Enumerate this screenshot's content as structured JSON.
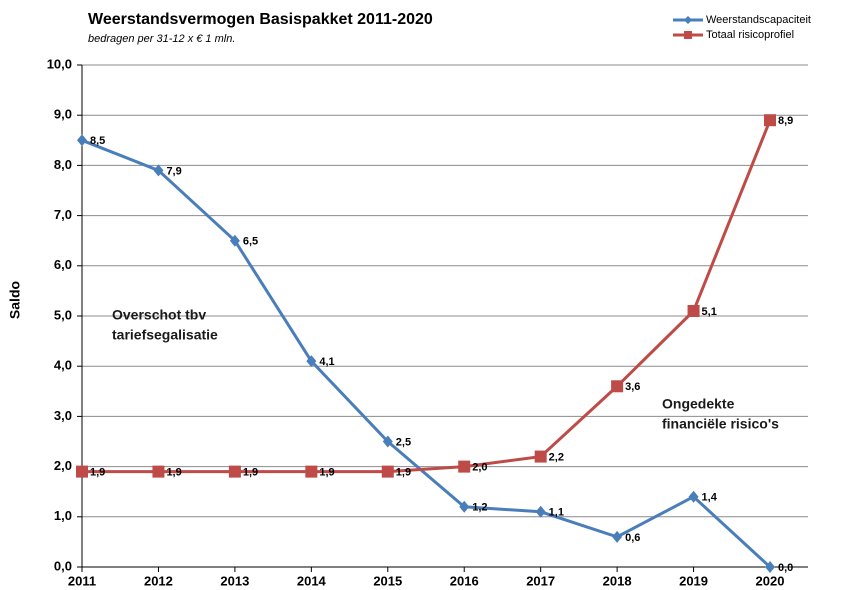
{
  "chart_data": {
    "type": "line",
    "title": "Weerstandsvermogen Basispakket 2011-2020",
    "subtitle": "bedragen per 31-12 x € 1 mln.",
    "y_label": "Saldo",
    "categories": [
      "2011",
      "2012",
      "2013",
      "2014",
      "2015",
      "2016",
      "2017",
      "2018",
      "2019",
      "2020"
    ],
    "series": [
      {
        "name": "Weerstandscapaciteit",
        "color": "#4a7ebb",
        "marker": "diamond",
        "values": [
          8.5,
          7.9,
          6.5,
          4.1,
          2.5,
          1.2,
          1.1,
          0.6,
          1.4,
          0.0
        ],
        "value_labels": [
          "8,5",
          "7,9",
          "6,5",
          "4,1",
          "2,5",
          "1,2",
          "1,1",
          "0,6",
          "1,4",
          "0,0"
        ]
      },
      {
        "name": "Totaal risicoprofiel",
        "color": "#be4b48",
        "marker": "square",
        "values": [
          1.9,
          1.9,
          1.9,
          1.9,
          1.9,
          2.0,
          2.2,
          3.6,
          5.1,
          8.9
        ],
        "value_labels": [
          "1,9",
          "1,9",
          "1,9",
          "1,9",
          "1,9",
          "2,0",
          "2,2",
          "3,6",
          "5,1",
          "8,9"
        ]
      }
    ],
    "ylim": [
      0,
      10
    ],
    "yticks": [
      {
        "value": 0,
        "label": "0,0"
      },
      {
        "value": 1,
        "label": "1,0"
      },
      {
        "value": 2,
        "label": "2,0"
      },
      {
        "value": 3,
        "label": "3,0"
      },
      {
        "value": 4,
        "label": "4,0"
      },
      {
        "value": 5,
        "label": "5,0"
      },
      {
        "value": 6,
        "label": "6,0"
      },
      {
        "value": 7,
        "label": "7,0"
      },
      {
        "value": 8,
        "label": "8,0"
      },
      {
        "value": 9,
        "label": "9,0"
      },
      {
        "value": 10,
        "label": "10,0"
      }
    ],
    "grid": true,
    "legend": "top-right",
    "annotations": [
      {
        "lines": [
          "Overschot tbv",
          "tariefsegalisatie"
        ]
      },
      {
        "lines": [
          "Ongedekte",
          "financiële risico's"
        ]
      }
    ]
  }
}
